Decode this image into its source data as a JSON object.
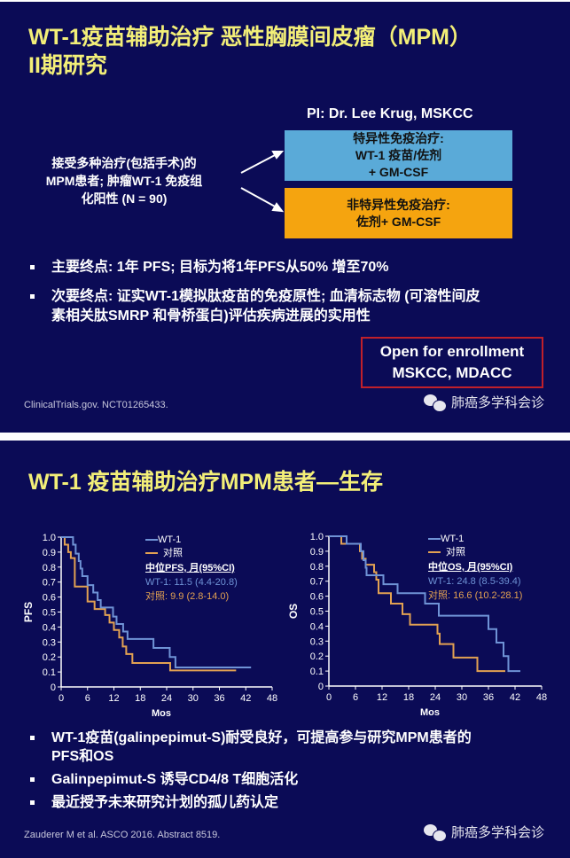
{
  "slide1": {
    "title_line1": "WT-1疫苗辅助治疗 恶性胸膜间皮瘤（MPM）",
    "title_line2": "II期研究",
    "pi": "PI: Dr. Lee Krug, MSKCC",
    "population": [
      "接受多种治疗(包括手术)的",
      "MPM患者; 肿瘤WT-1 免疫组",
      "化阳性 (N = 90)"
    ],
    "arm_specific": [
      "特异性免疫治疗:",
      "WT-1 疫苗/佐剂",
      "+ GM-CSF"
    ],
    "arm_nonspecific": [
      "非特异性免疫治疗:",
      "佐剂+ GM-CSF"
    ],
    "bullets": [
      {
        "lines": [
          "主要终点: 1年 PFS; 目标为将1年PFS从50% 增至70%"
        ]
      },
      {
        "lines": [
          "次要终点: 证实WT-1模拟肽疫苗的免疫原性; 血清标志物 (可溶性间皮",
          "素相关肽SMRP 和骨桥蛋白)评估疾病进展的实用性"
        ]
      }
    ],
    "enrollment": [
      "Open for enrollment",
      "MSKCC, MDACC"
    ],
    "footnote": "ClinicalTrials.gov. NCT01265433.",
    "watermark": "肺癌多学科会诊"
  },
  "slide2": {
    "title": "WT-1 疫苗辅助治疗MPM患者—生存",
    "bullets": [
      {
        "lines": [
          "WT-1疫苗(galinpepimut-S)耐受良好，可提高参与研究MPM患者的",
          "PFS和OS"
        ]
      },
      {
        "lines": [
          "Galinpepimut-S 诱导CD4/8 T细胞活化"
        ]
      },
      {
        "lines": [
          "最近授予未来研究计划的孤儿药认定"
        ]
      }
    ],
    "footnote": "Zauderer M et al. ASCO 2016. Abstract 8519.",
    "watermark": "肺癌多学科会诊"
  },
  "colors": {
    "background": "#0b0b56",
    "title": "#f3ef78",
    "wt1": "#6f93d6",
    "control": "#e2a152",
    "specific_box": "#5aaad8",
    "nonspecific_box": "#f5a40f",
    "enroll_border": "#c0202a"
  },
  "chart_data": [
    {
      "type": "line",
      "step": true,
      "xlabel": "Mos",
      "ylabel": "PFS",
      "xlim": [
        0,
        48
      ],
      "ylim": [
        0,
        1.0
      ],
      "xticks": [
        "0",
        "6",
        "12",
        "18",
        "24",
        "30",
        "36",
        "42",
        "48"
      ],
      "yticks": [
        "0",
        "0.1",
        "0.2",
        "0.3",
        "0.4",
        "0.5",
        "0.6",
        "0.7",
        "0.8",
        "0.9",
        "1.0"
      ],
      "legend": [
        "WT-1",
        "对照"
      ],
      "median_title": "中位PFS, 月(95%CI)",
      "median_wt1": "WT-1: 11.5 (4.4-20.8)",
      "median_control": "对照: 9.9 (2.8-14.0)",
      "series": [
        {
          "name": "WT-1",
          "x": [
            0,
            2.7,
            3.3,
            4,
            4.4,
            4.8,
            6,
            7.3,
            8.3,
            9,
            11.8,
            12.6,
            14.1,
            15.1,
            21,
            24.7,
            26,
            43.2
          ],
          "y": [
            1,
            0.95,
            0.89,
            0.84,
            0.79,
            0.74,
            0.68,
            0.63,
            0.58,
            0.53,
            0.47,
            0.42,
            0.37,
            0.32,
            0.26,
            0.2,
            0.13,
            0.13
          ]
        },
        {
          "name": "对照",
          "x": [
            0,
            0.8,
            1.6,
            2.2,
            3.1,
            6,
            7.6,
            10,
            11,
            12,
            13.2,
            14,
            14.8,
            16.2,
            24.8,
            39.8
          ],
          "y": [
            1,
            0.95,
            0.9,
            0.86,
            0.67,
            0.57,
            0.52,
            0.48,
            0.43,
            0.38,
            0.33,
            0.27,
            0.22,
            0.16,
            0.11,
            0.11
          ]
        }
      ]
    },
    {
      "type": "line",
      "step": true,
      "xlabel": "Mos",
      "ylabel": "OS",
      "xlim": [
        0,
        48
      ],
      "ylim": [
        0,
        1.0
      ],
      "xticks": [
        "0",
        "6",
        "12",
        "18",
        "24",
        "30",
        "36",
        "42",
        "48"
      ],
      "yticks": [
        "0",
        "0.1",
        "0.2",
        "0.3",
        "0.4",
        "0.5",
        "0.6",
        "0.7",
        "0.8",
        "0.9",
        "1.0"
      ],
      "legend": [
        "WT-1",
        "对照"
      ],
      "median_title": "中位OS, 月(95%CI)",
      "median_wt1": "WT-1: 24.8 (8.5-39.4)",
      "median_control": "对照: 16.6 (10.2-28.1)",
      "series": [
        {
          "name": "WT-1",
          "x": [
            0,
            4,
            7.2,
            7.8,
            8.3,
            8.5,
            12.3,
            15.5,
            21.7,
            24.8,
            36,
            37.8,
            39.4,
            40.5,
            43.2
          ],
          "y": [
            1,
            0.95,
            0.9,
            0.84,
            0.79,
            0.74,
            0.68,
            0.62,
            0.55,
            0.47,
            0.38,
            0.29,
            0.2,
            0.1,
            0.1
          ]
        },
        {
          "name": "对照",
          "x": [
            0,
            2.8,
            7,
            7.5,
            8.3,
            10.2,
            10.7,
            11.2,
            14,
            16.6,
            18.3,
            24.5,
            25,
            28.1,
            33.5,
            39.8
          ],
          "y": [
            1,
            0.95,
            0.9,
            0.85,
            0.81,
            0.76,
            0.71,
            0.62,
            0.55,
            0.48,
            0.41,
            0.35,
            0.28,
            0.19,
            0.1,
            0.1
          ]
        }
      ]
    }
  ]
}
